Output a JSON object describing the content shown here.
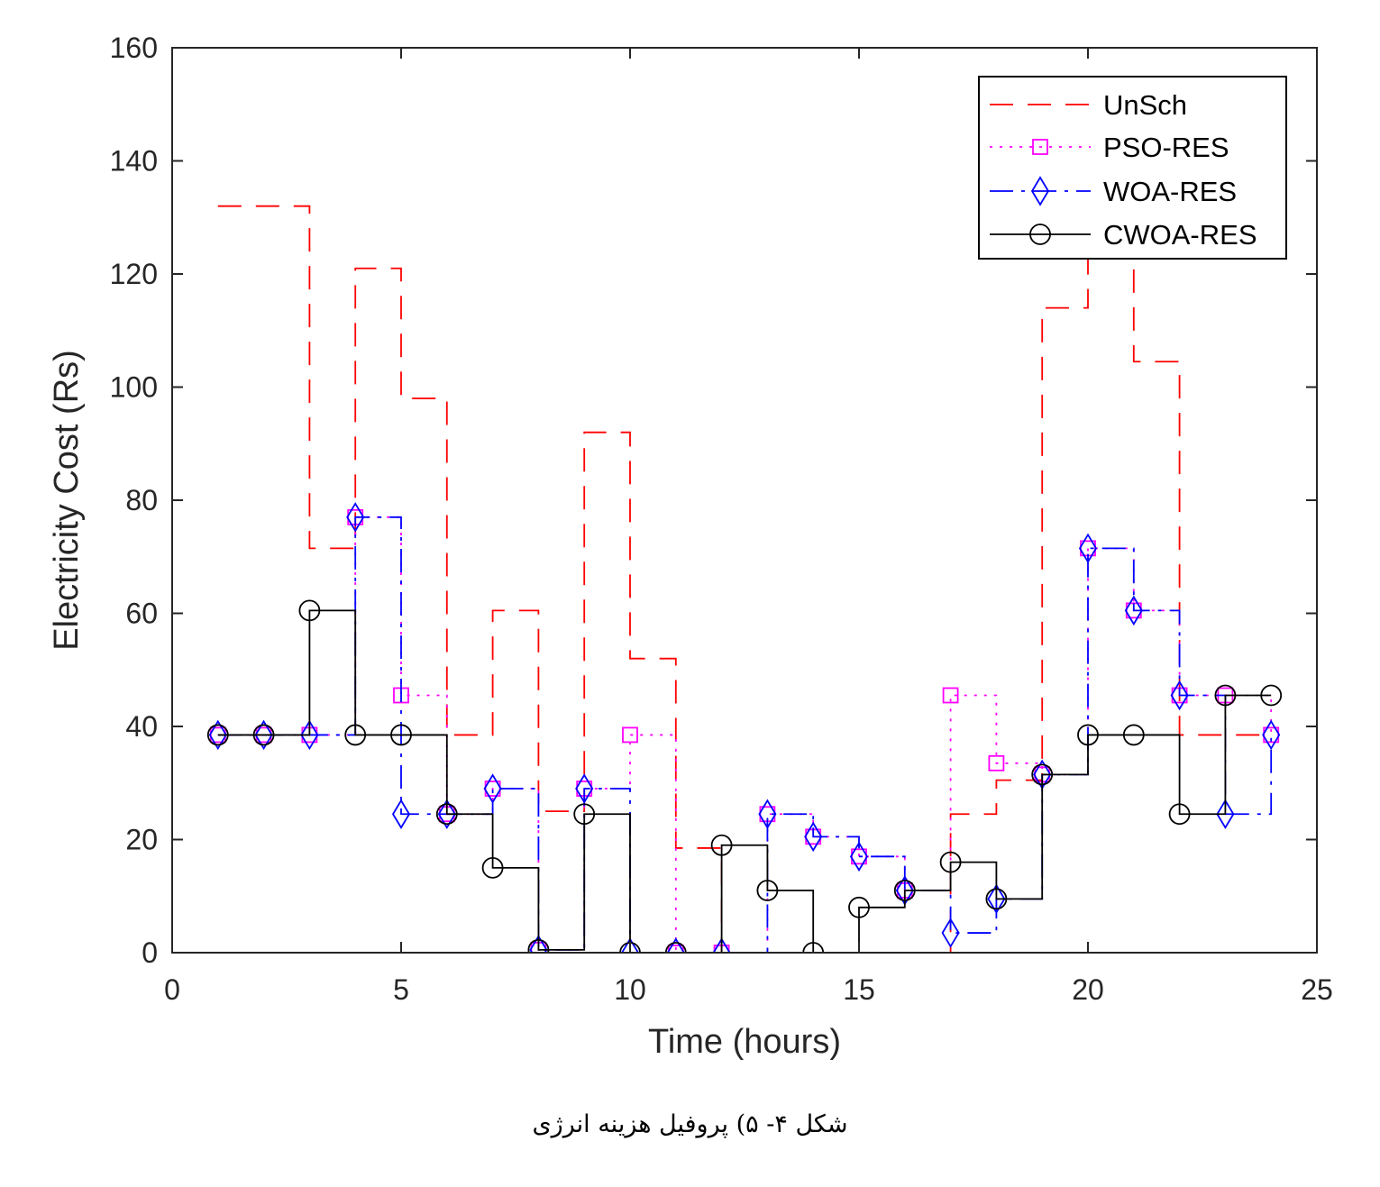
{
  "caption": "شکل ۴- ۵) پروفیل هزینه انرژی",
  "chart_data": {
    "type": "line",
    "step": "post",
    "xlabel": "Time (hours)",
    "ylabel": "Electricity Cost (Rs)",
    "xlim": [
      0,
      25
    ],
    "ylim": [
      0,
      160
    ],
    "xticks": [
      0,
      5,
      10,
      15,
      20,
      25
    ],
    "yticks": [
      0,
      20,
      40,
      60,
      80,
      100,
      120,
      140,
      160
    ],
    "legend_position": "top-right",
    "x": [
      1,
      2,
      3,
      4,
      5,
      6,
      7,
      8,
      9,
      10,
      11,
      12,
      13,
      14,
      15,
      16,
      17,
      18,
      19,
      20,
      21,
      22,
      23,
      24
    ],
    "series": [
      {
        "name": "UnSch",
        "color": "#ff0000",
        "line_style": "dashed",
        "marker": "none",
        "values": [
          132,
          132,
          71.5,
          121,
          98,
          38.5,
          60.5,
          25,
          92,
          52,
          18.5,
          0,
          0,
          0,
          0,
          0,
          24.5,
          30.5,
          114,
          123,
          104.5,
          38.5,
          38.5,
          38.5
        ]
      },
      {
        "name": "PSO-RES",
        "color": "#ff00ff",
        "line_style": "dotted",
        "marker": "square",
        "values": [
          38.5,
          38.5,
          38.5,
          77,
          45.5,
          24.5,
          29,
          0.5,
          29,
          38.5,
          0,
          0,
          24.5,
          20.5,
          17,
          11,
          45.5,
          33.5,
          31.5,
          71.5,
          60.5,
          45.5,
          45.5,
          38.5
        ]
      },
      {
        "name": "WOA-RES",
        "color": "#0000ff",
        "line_style": "dashdot",
        "marker": "diamond",
        "values": [
          38.5,
          38.5,
          38.5,
          77,
          24.5,
          24.5,
          29,
          0.5,
          29,
          0,
          0,
          0,
          24.5,
          20.5,
          17,
          11,
          3.5,
          9.5,
          31.5,
          71.5,
          60.5,
          45.5,
          24.5,
          38.5
        ]
      },
      {
        "name": "CWOA-RES",
        "color": "#000000",
        "line_style": "solid",
        "marker": "circle",
        "values": [
          38.5,
          38.5,
          60.5,
          38.5,
          38.5,
          24.5,
          15,
          0.5,
          24.5,
          0,
          0,
          19,
          11,
          0,
          8,
          11,
          16,
          9.5,
          31.5,
          38.5,
          38.5,
          24.5,
          45.5,
          45.5
        ]
      }
    ]
  }
}
